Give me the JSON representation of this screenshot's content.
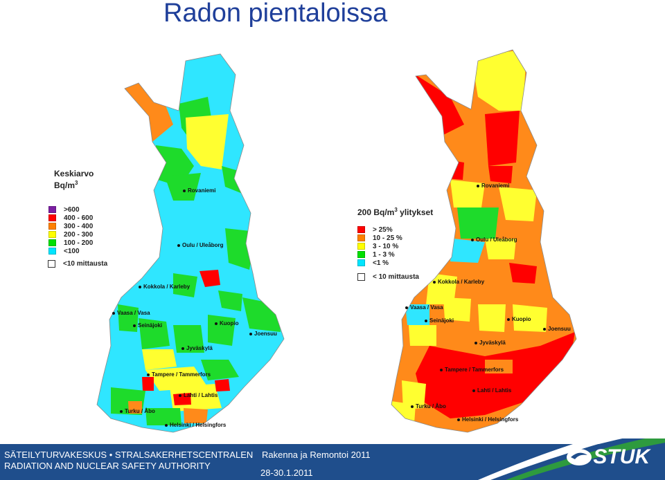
{
  "title": "Radon pientaloissa",
  "left_map": {
    "legend_title": "Keskiarvo",
    "legend_unit": "Bq/m",
    "legend_unit_sup": "3",
    "classes": [
      {
        "label": ">600",
        "color": "#7b1fa2"
      },
      {
        "label": "400 - 600",
        "color": "#ff0000"
      },
      {
        "label": "300 - 400",
        "color": "#ff8000"
      },
      {
        "label": "200 - 300",
        "color": "#ffff00"
      },
      {
        "label": "100 - 200",
        "color": "#00e000"
      },
      {
        "label": "<100",
        "color": "#00e5ff"
      }
    ],
    "empty_label": "<10 mittausta"
  },
  "right_map": {
    "legend_title": "200 Bq/m",
    "legend_unit_sup": "3",
    "legend_title_suffix": "ylitykset",
    "classes": [
      {
        "label": "> 25%",
        "color": "#ff0000"
      },
      {
        "label": "10 - 25 %",
        "color": "#ff8000"
      },
      {
        "label": "3 - 10 %",
        "color": "#ffff00"
      },
      {
        "label": "1 - 3 %",
        "color": "#00e000"
      },
      {
        "label": "<1 %",
        "color": "#00e5ff"
      }
    ],
    "empty_label": "< 10 mittausta"
  },
  "cities": {
    "rovaniemi": "Rovaniemi",
    "oulu": "Oulu / Uleåborg",
    "kokkola": "Kokkola / Karleby",
    "vaasa": "Vaasa / Vasa",
    "seinajoki": "Seinäjoki",
    "kuopio": "Kuopio",
    "joensuu": "Joensuu",
    "jyvaskyla": "Jyväskylä",
    "tampere": "Tampere / Tammerfors",
    "lahti": "Lahti / Lahtis",
    "turku": "Turku / Åbo",
    "helsinki": "Helsinki / Helsingfors"
  },
  "footer": {
    "org_line1": "SÄTEILYTURVAKESKUS • STRALSAKERHETSCENTRALEN",
    "org_line2": "RADIATION AND NUCLEAR SAFETY AUTHORITY",
    "event": "Rakenna ja Remontoi 2011",
    "dates": "28-30.1.2011",
    "logo": "STUK",
    "colors": {
      "band": "#1f4e8c",
      "stripe_green": "#2e9a3e",
      "stripe_white": "#ffffff"
    }
  }
}
